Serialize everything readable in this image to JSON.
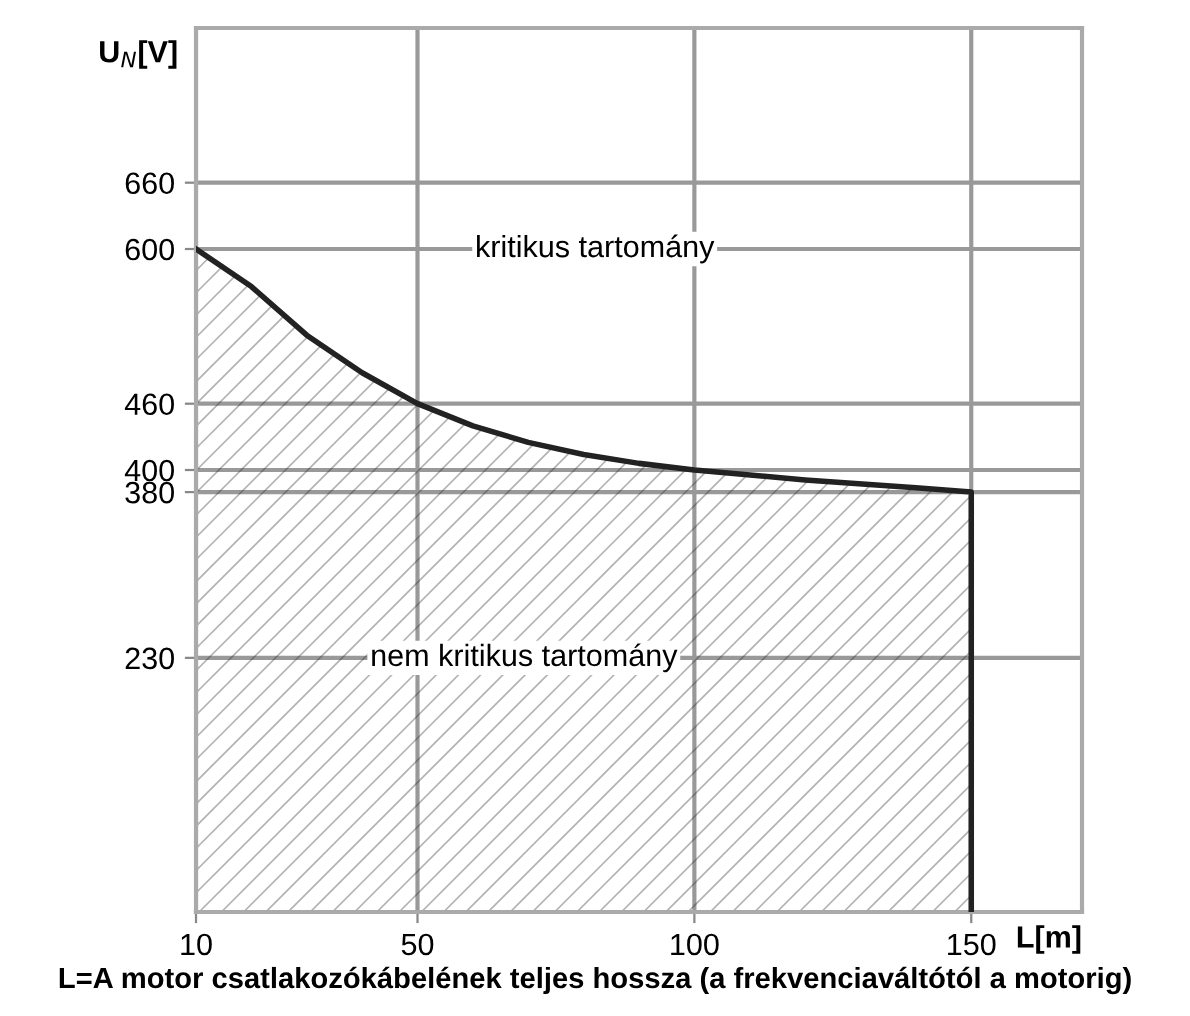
{
  "chart_data": {
    "type": "area",
    "xlabel": "L[m]",
    "ylabel": "U$_{N}$[V]",
    "x": [
      10,
      20,
      30,
      40,
      50,
      60,
      70,
      80,
      90,
      100,
      120,
      140,
      150,
      150
    ],
    "series": [
      {
        "color": "#222222",
        "values": [
          600,
          566,
          522,
          488,
          460,
          440,
          425,
          414,
          406,
          400,
          391,
          384,
          380,
          0
        ]
      }
    ],
    "xlim": [
      10,
      170
    ],
    "ylim": [
      0,
      800
    ],
    "xticks": [
      10,
      50,
      100,
      150
    ],
    "yticks": [
      230,
      380,
      400,
      460,
      600,
      660
    ],
    "grid": true,
    "annotations": [
      "kritikus tartomány",
      "nem kritikus tartomány",
      "L=A motor csatlakozókábelének teljes hossza (a frekvenciaváltótól a motorig)"
    ]
  }
}
